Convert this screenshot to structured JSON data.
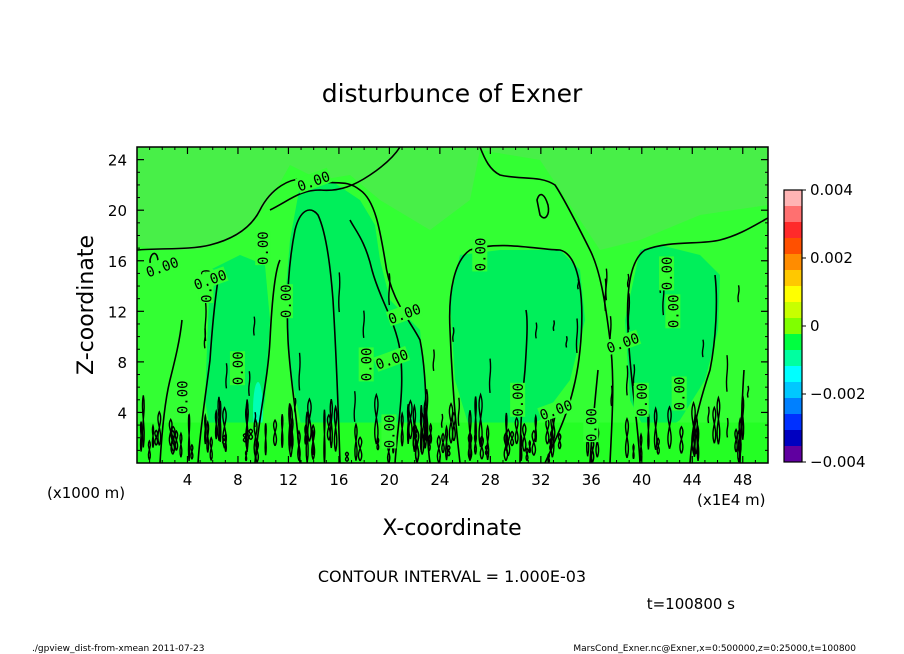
{
  "chart_data": {
    "type": "heatmap",
    "title": "disturbunce of Exner",
    "xlabel": "X-coordinate",
    "ylabel": "Z-coordinate",
    "x_unit_label": "(x1E4 m)",
    "y_unit_label": "(x1000 m)",
    "xlim": [
      0,
      50
    ],
    "ylim": [
      0,
      25
    ],
    "x_ticks": [
      4,
      8,
      12,
      16,
      20,
      24,
      28,
      32,
      36,
      40,
      44,
      48
    ],
    "y_ticks": [
      4,
      8,
      12,
      16,
      20,
      24
    ],
    "x_tick_labels": [
      "4",
      "8",
      "12",
      "16",
      "20",
      "24",
      "28",
      "32",
      "36",
      "40",
      "44",
      "48"
    ],
    "y_tick_labels": [
      "4",
      "8",
      "12",
      "16",
      "20",
      "24"
    ],
    "contour_label": "0.00",
    "contour_label_positions": [
      [
        14.0,
        22.3
      ],
      [
        10.0,
        17.0
      ],
      [
        27.2,
        16.5
      ],
      [
        2.0,
        15.5
      ],
      [
        5.5,
        14.0
      ],
      [
        11.8,
        12.8
      ],
      [
        21.2,
        11.8
      ],
      [
        42.0,
        15.0
      ],
      [
        42.5,
        12.0
      ],
      [
        5.8,
        14.5
      ],
      [
        8.0,
        7.5
      ],
      [
        18.2,
        7.8
      ],
      [
        20.2,
        8.2
      ],
      [
        3.6,
        5.2
      ],
      [
        30.2,
        5.0
      ],
      [
        33.2,
        4.2
      ],
      [
        36.0,
        3.0
      ],
      [
        40.0,
        5.0
      ],
      [
        38.5,
        9.5
      ],
      [
        43.0,
        5.5
      ],
      [
        20.0,
        2.5
      ]
    ],
    "colorbar": {
      "min": -0.004,
      "max": 0.004,
      "tick_labels": [
        "0.004",
        "0.002",
        "0",
        "−0.002",
        "−0.004"
      ],
      "tick_values": [
        0.004,
        0.002,
        0,
        -0.002,
        -0.004
      ],
      "colors": [
        "#ffb4b4",
        "#ff7070",
        "#ff2a2a",
        "#ff5000",
        "#ff8c00",
        "#ffc800",
        "#ffff00",
        "#c8ff00",
        "#80ff00",
        "#00ff40",
        "#00ffa0",
        "#00ffff",
        "#00c8ff",
        "#0080ff",
        "#0030ff",
        "#0000c0",
        "#6000a0"
      ]
    },
    "field_colors": {
      "main": "#33ff33",
      "upper": "#48ef48",
      "lower_band": "#24ff24",
      "weak_negative": "#00ef5a",
      "cyan_spot": "#00ffb4"
    }
  },
  "annotations": {
    "contour_interval": "CONTOUR INTERVAL = 1.000E-03",
    "time": "t=100800 s",
    "footer_left": "./gpview_dist-from-xmean  2011-07-23",
    "footer_right": "MarsCond_Exner.nc@Exner,x=0:500000,z=0:25000,t=100800"
  }
}
